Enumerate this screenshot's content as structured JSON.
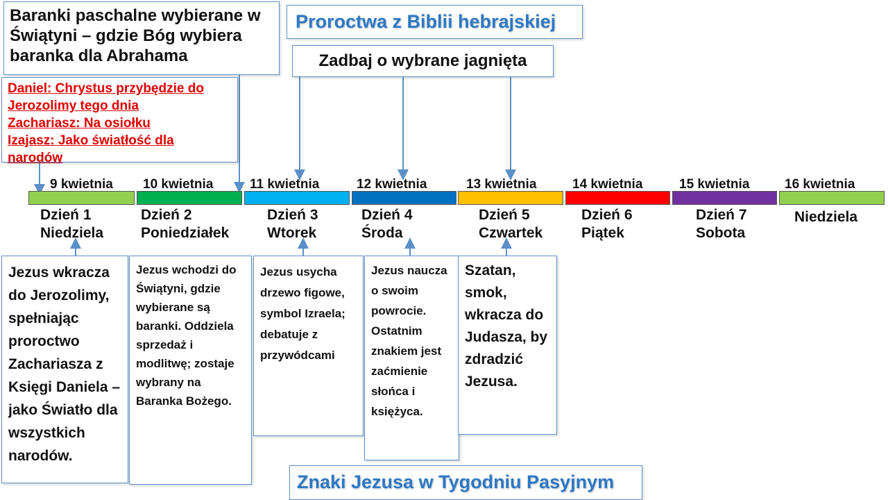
{
  "header": {
    "top_left_text": "Baranki paschalne wybierane w Świątyni – gdzie Bóg wybiera baranka dla Abrahama",
    "title": "Proroctwa z Biblii hebrajskiej",
    "lambs_text": "Zadbaj o wybrane jagnięta"
  },
  "prophecies": [
    "Daniel: Chrystus przybędzie do Jerozolimy tego dnia",
    "Zachariasz: Na osiołku",
    "Izajasz: Jako światłość dla narodów"
  ],
  "timeline": [
    {
      "date": "9 kwietnia",
      "day": "Dzień 1",
      "name": "Niedziela",
      "color": "#92d050"
    },
    {
      "date": "10 kwietnia",
      "day": "Dzień 2",
      "name": "Poniedziałek",
      "color": "#00b050"
    },
    {
      "date": "11 kwietnia",
      "day": "Dzień 3",
      "name": "Wtorek",
      "color": "#00b0f0"
    },
    {
      "date": "12 kwietnia",
      "day": "Dzień 4",
      "name": "Środa",
      "color": "#0070c0"
    },
    {
      "date": "13 kwietnia",
      "day": "Dzień 5",
      "name": "Czwartek",
      "color": "#ffc000"
    },
    {
      "date": "14 kwietnia",
      "day": "Dzień 6",
      "name": "Piątek",
      "color": "#ff0000"
    },
    {
      "date": "15 kwietnia",
      "day": "Dzień 7",
      "name": "Sobota",
      "color": "#7030a0"
    },
    {
      "date": "16 kwietnia",
      "day": "",
      "name": "Niedziela",
      "color": "#92d050"
    }
  ],
  "events": [
    "Jezus wkracza do Jerozolimy, spełniając proroctwo Zachariasza z Księgi Daniela – jako Światło dla wszystkich narodów.",
    "Jezus wchodzi do Świątyni, gdzie wybierane są baranki. Oddziela sprzedaż i modlitwę; zostaje wybrany na Baranka Bożego.",
    "Jezus usycha drzewo figowe, symbol Izraela; debatuje z przywódcami",
    "Jezus naucza o swoim powrocie. Ostatnim znakiem jest zaćmienie słońca i księżyca.",
    "Szatan, smok, wkracza do Judasza, by zdradzić Jezusa."
  ],
  "footer": {
    "title": "Znaki Jezusa w Tygodniu Pasyjnym"
  }
}
